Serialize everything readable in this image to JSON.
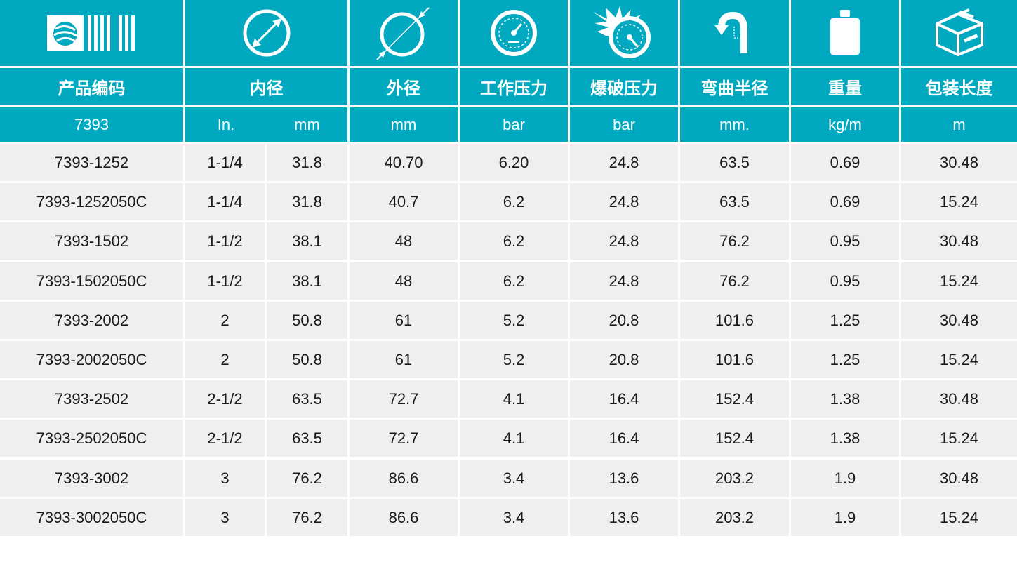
{
  "colors": {
    "header_bg": "#00a9bf",
    "header_text": "#ffffff",
    "row_bg": "#efefef",
    "row_text": "#1a1a1a",
    "gap": "#ffffff"
  },
  "icons": [
    "brand-logo-icon",
    "inner-diameter-icon",
    "outer-diameter-icon",
    "working-pressure-gauge-icon",
    "burst-pressure-icon",
    "bend-radius-icon",
    "weight-icon",
    "package-box-icon"
  ],
  "headers": {
    "titles": [
      "产品编码",
      "内径",
      "外径",
      "工作压力",
      "爆破压力",
      "弯曲半径",
      "重量",
      "包装长度"
    ],
    "series": "7393",
    "units": [
      "In.",
      "mm",
      "mm",
      "bar",
      "bar",
      "mm.",
      "kg/m",
      "m"
    ]
  },
  "rows": [
    [
      "7393-1252",
      "1-1/4",
      "31.8",
      "40.70",
      "6.20",
      "24.8",
      "63.5",
      "0.69",
      "30.48"
    ],
    [
      "7393-1252050C",
      "1-1/4",
      "31.8",
      "40.7",
      "6.2",
      "24.8",
      "63.5",
      "0.69",
      "15.24"
    ],
    [
      "7393-1502",
      "1-1/2",
      "38.1",
      "48",
      "6.2",
      "24.8",
      "76.2",
      "0.95",
      "30.48"
    ],
    [
      "7393-1502050C",
      "1-1/2",
      "38.1",
      "48",
      "6.2",
      "24.8",
      "76.2",
      "0.95",
      "15.24"
    ],
    [
      "7393-2002",
      "2",
      "50.8",
      "61",
      "5.2",
      "20.8",
      "101.6",
      "1.25",
      "30.48"
    ],
    [
      "7393-2002050C",
      "2",
      "50.8",
      "61",
      "5.2",
      "20.8",
      "101.6",
      "1.25",
      "15.24"
    ],
    [
      "7393-2502",
      "2-1/2",
      "63.5",
      "72.7",
      "4.1",
      "16.4",
      "152.4",
      "1.38",
      "30.48"
    ],
    [
      "7393-2502050C",
      "2-1/2",
      "63.5",
      "72.7",
      "4.1",
      "16.4",
      "152.4",
      "1.38",
      "15.24"
    ],
    [
      "7393-3002",
      "3",
      "76.2",
      "86.6",
      "3.4",
      "13.6",
      "203.2",
      "1.9",
      "30.48"
    ],
    [
      "7393-3002050C",
      "3",
      "76.2",
      "86.6",
      "3.4",
      "13.6",
      "203.2",
      "1.9",
      "15.24"
    ]
  ]
}
